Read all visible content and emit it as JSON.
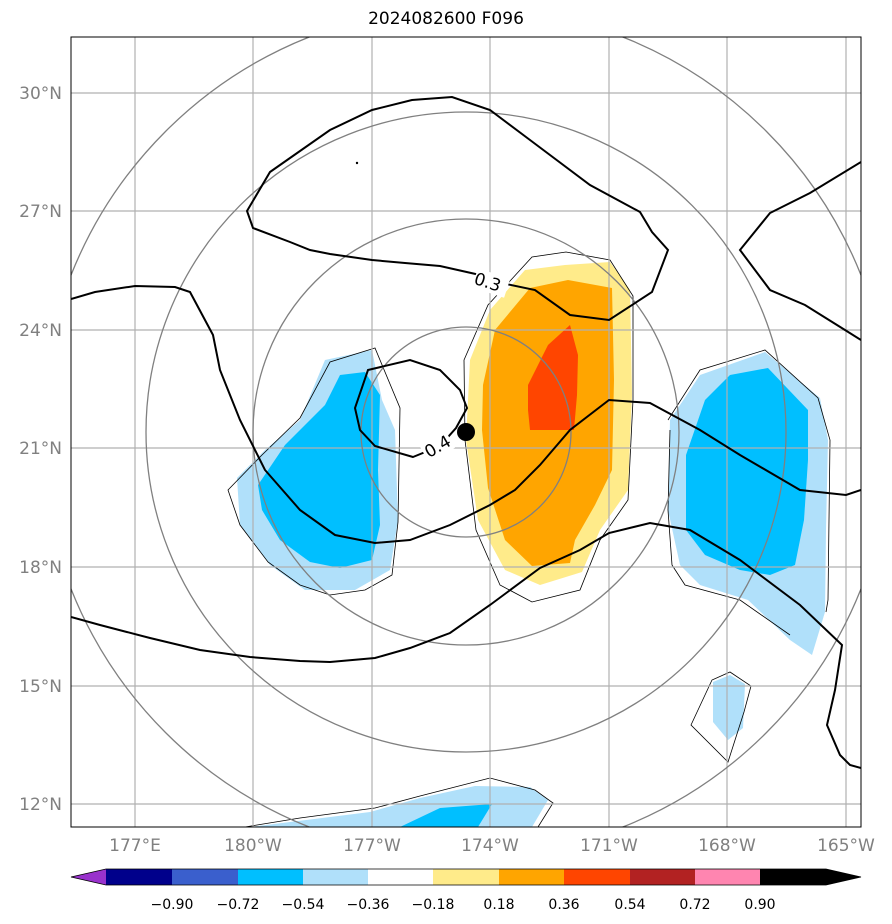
{
  "title": "2024082600 F096",
  "lat_labels": [
    "30°N",
    "27°N",
    "24°N",
    "21°N",
    "18°N",
    "15°N",
    "12°N"
  ],
  "lon_labels": [
    "177°E",
    "180°W",
    "177°W",
    "174°W",
    "171°W",
    "168°W",
    "165°W"
  ],
  "contour_labels": [
    "0.3",
    "0.4"
  ],
  "colorbar": {
    "ticks": [
      "−0.90",
      "−0.72",
      "−0.54",
      "−0.36",
      "−0.18",
      "0.18",
      "0.36",
      "0.54",
      "0.72",
      "0.90"
    ],
    "colors": [
      "#9932cc",
      "#00008b",
      "#3a5fcd",
      "#00bfff",
      "#b0e0fa",
      "#ffffff",
      "#ffeb8a",
      "#ffa500",
      "#ff4500",
      "#b22222",
      "#ff85b0"
    ]
  }
}
